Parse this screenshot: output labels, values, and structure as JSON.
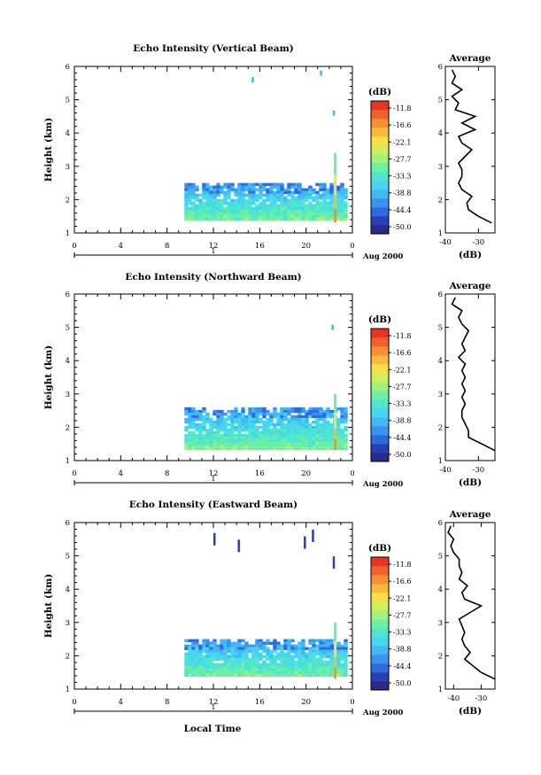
{
  "figure": {
    "bottom_axis_label": "Local Time"
  },
  "colorbar_ticks": [
    "-11.8",
    "-16.6",
    "-22.1",
    "-27.7",
    "-33.3",
    "-38.8",
    "-44.4",
    "-50.0"
  ],
  "colorbar_unit": "(dB)",
  "colorscale": [
    "#2b2b86",
    "#2a3fb5",
    "#2f6ae0",
    "#3a93ef",
    "#43b8f5",
    "#46d6ef",
    "#4fe6cd",
    "#6ef0a3",
    "#a2f27b",
    "#d2ee5c",
    "#f5e04a",
    "#f9b93c",
    "#f88f33",
    "#f1612c",
    "#e73523"
  ],
  "chart_data": [
    {
      "type": "heatmap",
      "title": "Echo Intensity (Vertical Beam)",
      "ylabel": "Height (km)",
      "ylim": [
        1,
        6
      ],
      "yticks": [
        "1",
        "2",
        "3",
        "4",
        "5",
        "6"
      ],
      "xlim": [
        0,
        24
      ],
      "xticks": [
        "0",
        "4",
        "8",
        "12",
        "16",
        "20",
        "0"
      ],
      "date_day": "1",
      "date_label": "Aug 2000",
      "zlabel": "(dB)",
      "zrange": [
        -50.0,
        -11.8
      ],
      "data_start_hour": 9.5,
      "data_end_hour": 24,
      "echo_layer_km": [
        1.4,
        2.5
      ],
      "spike_hour": 22.4,
      "spike_top_km": 3.4,
      "sparse_echoes": [
        {
          "hour": 15.3,
          "km": 5.6
        },
        {
          "hour": 21.2,
          "km": 5.8
        },
        {
          "hour": 22.3,
          "km": 4.6
        }
      ],
      "profile": {
        "title": "Average",
        "xlabel": "(dB)",
        "xlim": [
          -40,
          -25
        ],
        "xticks": [
          "-40",
          "-30"
        ],
        "ylim": [
          1,
          6
        ],
        "yticks": [
          "1",
          "2",
          "3",
          "4",
          "5",
          "6"
        ],
        "heights": [
          1.3,
          1.5,
          1.7,
          1.9,
          2.1,
          2.3,
          2.5,
          2.7,
          2.9,
          3.1,
          3.3,
          3.5,
          3.7,
          3.9,
          4.1,
          4.3,
          4.5,
          4.7,
          4.9,
          5.1,
          5.3,
          5.5,
          5.7,
          5.9
        ],
        "values": [
          -26,
          -30,
          -33,
          -33.5,
          -32,
          -35,
          -36,
          -35,
          -35,
          -36,
          -34,
          -32,
          -35,
          -36,
          -31,
          -35,
          -31,
          -37,
          -36,
          -38,
          -35,
          -38,
          -37,
          -38
        ]
      }
    },
    {
      "type": "heatmap",
      "title": "Echo Intensity (Northward Beam)",
      "ylabel": "Height (km)",
      "ylim": [
        1,
        6
      ],
      "yticks": [
        "1",
        "2",
        "3",
        "4",
        "5",
        "6"
      ],
      "xlim": [
        0,
        24
      ],
      "xticks": [
        "0",
        "4",
        "8",
        "12",
        "16",
        "20",
        "0"
      ],
      "date_day": "1",
      "date_label": "Aug 2000",
      "zlabel": "(dB)",
      "zrange": [
        -50.0,
        -11.8
      ],
      "data_start_hour": 9.5,
      "data_end_hour": 24,
      "echo_layer_km": [
        1.4,
        2.6
      ],
      "spike_hour": 22.4,
      "spike_top_km": 3.0,
      "sparse_echoes": [
        {
          "hour": 22.2,
          "km": 5.0
        }
      ],
      "profile": {
        "title": "Average",
        "xlabel": "(dB)",
        "xlim": [
          -40,
          -25
        ],
        "xticks": [
          "-40",
          "-30"
        ],
        "ylim": [
          1,
          6
        ],
        "yticks": [
          "1",
          "2",
          "3",
          "4",
          "5",
          "6"
        ],
        "heights": [
          1.3,
          1.5,
          1.7,
          1.9,
          2.1,
          2.3,
          2.5,
          2.7,
          2.9,
          3.1,
          3.3,
          3.5,
          3.7,
          3.9,
          4.1,
          4.3,
          4.5,
          4.7,
          4.9,
          5.1,
          5.3,
          5.5,
          5.7,
          5.9
        ],
        "values": [
          -25,
          -29,
          -33,
          -33,
          -34,
          -35,
          -35,
          -34,
          -35,
          -34,
          -35,
          -34,
          -35,
          -34,
          -36,
          -34,
          -35,
          -34,
          -33,
          -35,
          -36,
          -35,
          -38,
          -37
        ]
      }
    },
    {
      "type": "heatmap",
      "title": "Echo Intensity (Eastward Beam)",
      "ylabel": "Height (km)",
      "ylim": [
        1,
        6
      ],
      "yticks": [
        "1",
        "2",
        "3",
        "4",
        "5",
        "6"
      ],
      "xlim": [
        0,
        24
      ],
      "xticks": [
        "0",
        "4",
        "8",
        "12",
        "16",
        "20",
        "0"
      ],
      "date_day": "1",
      "date_label": "Aug 2000",
      "xlabel": "Local Time",
      "zlabel": "(dB)",
      "zrange": [
        -50.0,
        -11.8
      ],
      "data_start_hour": 9.5,
      "data_end_hour": 24,
      "echo_layer_km": [
        1.4,
        2.5
      ],
      "spike_hour": 22.4,
      "spike_top_km": 3.0,
      "sparse_echoes": [
        {
          "hour": 12.0,
          "km": 5.5
        },
        {
          "hour": 14.1,
          "km": 5.3
        },
        {
          "hour": 19.8,
          "km": 5.4
        },
        {
          "hour": 20.5,
          "km": 5.6
        },
        {
          "hour": 22.3,
          "km": 4.8
        }
      ],
      "profile": {
        "title": "Average",
        "xlabel": "(dB)",
        "xlim": [
          -43,
          -25
        ],
        "xticks": [
          "-40",
          "-30"
        ],
        "ylim": [
          1,
          6
        ],
        "yticks": [
          "1",
          "2",
          "3",
          "4",
          "5",
          "6"
        ],
        "heights": [
          1.3,
          1.5,
          1.7,
          1.9,
          2.1,
          2.3,
          2.5,
          2.7,
          2.9,
          3.1,
          3.3,
          3.5,
          3.7,
          3.9,
          4.1,
          4.3,
          4.5,
          4.7,
          4.9,
          5.1,
          5.3,
          5.5,
          5.7,
          5.9
        ],
        "values": [
          -25,
          -30,
          -33,
          -36,
          -34,
          -36,
          -37,
          -36,
          -37,
          -38,
          -34,
          -30,
          -36,
          -37,
          -35,
          -38,
          -37,
          -38,
          -38,
          -40,
          -41,
          -40,
          -42,
          -41
        ]
      }
    }
  ]
}
